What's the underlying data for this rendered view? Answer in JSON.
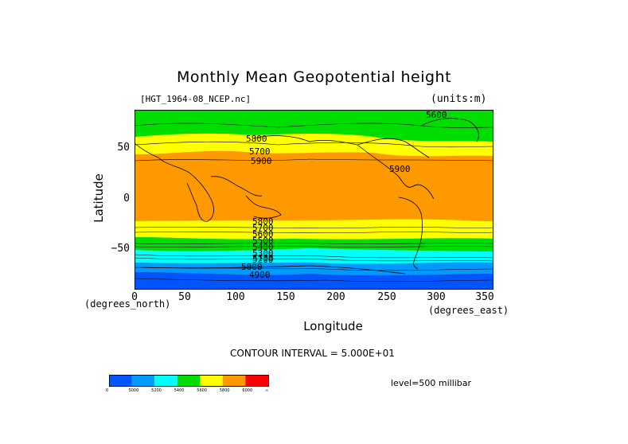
{
  "title": "Monthly Mean Geopotential height",
  "file_label": "[HGT_1964-08_NCEP.nc]",
  "units_label": "(units:m)",
  "yaxis": {
    "label": "Latitude",
    "unit_label": "(degrees_north)",
    "ticks": [
      "50",
      "0",
      "−50"
    ]
  },
  "xaxis": {
    "label": "Longitude",
    "unit_label": "(degrees_east)",
    "ticks": [
      "0",
      "50",
      "100",
      "150",
      "200",
      "250",
      "300",
      "350"
    ]
  },
  "contour_interval": "CONTOUR INTERVAL = 5.000E+01",
  "level_label": "level=500 millibar",
  "contour_labels": [
    "5800",
    "5600",
    "5700",
    "5900",
    "5900",
    "5800",
    "5700",
    "5600",
    "5500",
    "5400",
    "5300",
    "5200",
    "5100",
    "5000",
    "4900"
  ],
  "colorbar": {
    "colors": [
      "#0055ff",
      "#0099ff",
      "#00ffff",
      "#00dd00",
      "#ffff00",
      "#ff9900",
      "#ff0000"
    ],
    "labels": [
      "0",
      "5000",
      "5200",
      "5400",
      "5600",
      "5800",
      "6000",
      "∞"
    ]
  },
  "map_colors": {
    "deep_blue": "#0055ff",
    "blue": "#0099ff",
    "cyan": "#00ffff",
    "green": "#00dd00",
    "yellow": "#ffff00",
    "orange": "#ff9900"
  }
}
